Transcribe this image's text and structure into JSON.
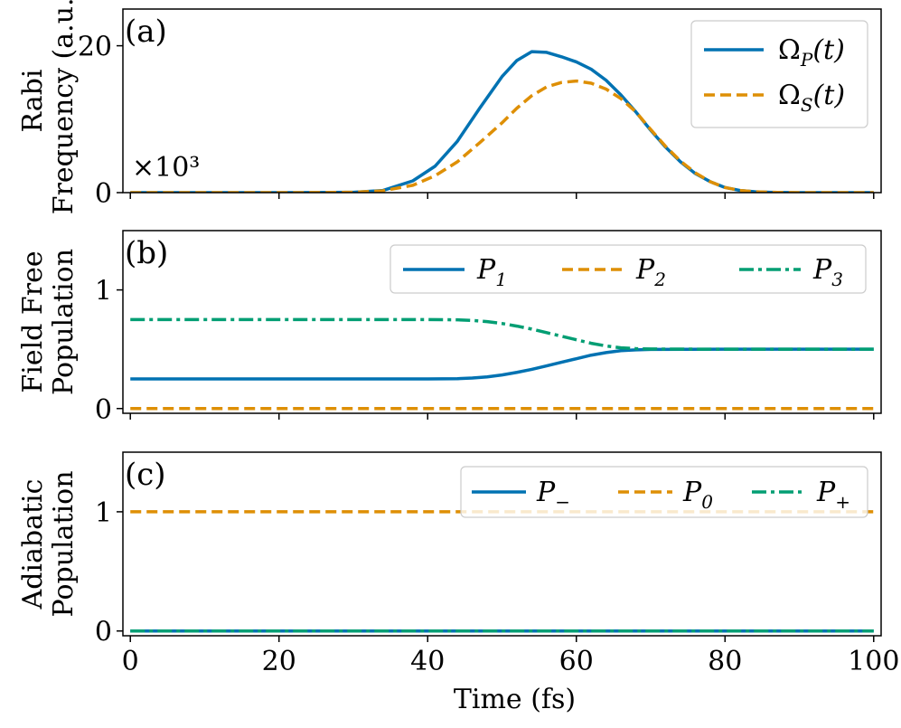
{
  "chart_data": [
    {
      "type": "line",
      "panel_label": "(a)",
      "ylabel": [
        "Rabi",
        "Frequency (a.u.)"
      ],
      "xlabel": "",
      "multiplier": "×10³",
      "xlim": [
        -1,
        101
      ],
      "ylim": [
        0,
        25
      ],
      "yticks": [
        {
          "value": 0,
          "label": "0"
        },
        {
          "value": 20,
          "label": "20"
        }
      ],
      "xticks": [
        0,
        20,
        40,
        60,
        80,
        100
      ],
      "show_xticklabels": false,
      "legend_position": "top-right",
      "legend_layout": "column",
      "series": [
        {
          "name": "Ω_P(t)",
          "legend_main": "Ω",
          "legend_sub": "P",
          "legend_tail": "(t)",
          "color": "#0072b2",
          "style": "solid",
          "x": [
            0,
            10,
            20,
            25,
            30,
            34,
            38,
            41,
            44,
            47,
            50,
            52,
            54,
            56,
            58,
            60,
            62,
            64,
            66,
            68,
            70,
            72,
            74,
            76,
            78,
            80,
            82,
            84,
            86,
            88,
            90,
            95,
            100
          ],
          "y": [
            0,
            0,
            0,
            0.01,
            0.05,
            0.3,
            1.6,
            3.6,
            7.0,
            11.5,
            15.8,
            18.0,
            19.2,
            19.1,
            18.5,
            17.8,
            16.8,
            15.3,
            13.3,
            11.0,
            8.5,
            6.2,
            4.2,
            2.6,
            1.5,
            0.7,
            0.3,
            0.12,
            0.05,
            0.02,
            0,
            0,
            0
          ]
        },
        {
          "name": "Ω_S(t)",
          "legend_main": "Ω",
          "legend_sub": "S",
          "legend_tail": "(t)",
          "color": "#de8f05",
          "style": "dashed",
          "x": [
            0,
            10,
            20,
            25,
            30,
            34,
            38,
            41,
            44,
            47,
            50,
            52,
            54,
            56,
            58,
            60,
            62,
            64,
            66,
            68,
            70,
            72,
            74,
            76,
            78,
            80,
            82,
            84,
            86,
            88,
            90,
            95,
            100
          ],
          "y": [
            0,
            0,
            0,
            0.01,
            0.05,
            0.25,
            1.0,
            2.3,
            4.2,
            6.8,
            9.5,
            11.5,
            13.2,
            14.4,
            15.0,
            15.2,
            14.9,
            14.1,
            12.8,
            11.0,
            8.6,
            6.3,
            4.3,
            2.7,
            1.5,
            0.7,
            0.3,
            0.12,
            0.05,
            0.02,
            0,
            0,
            0
          ]
        }
      ]
    },
    {
      "type": "line",
      "panel_label": "(b)",
      "ylabel": [
        "Field Free",
        "Population"
      ],
      "xlabel": "",
      "xlim": [
        -1,
        101
      ],
      "ylim": [
        -0.04,
        1.5
      ],
      "yticks": [
        {
          "value": 0,
          "label": "0"
        },
        {
          "value": 1,
          "label": "1"
        }
      ],
      "xticks": [
        0,
        20,
        40,
        60,
        80,
        100
      ],
      "show_xticklabels": false,
      "legend_position": "top-right",
      "legend_layout": "row",
      "series": [
        {
          "name": "P_1",
          "legend_main": "P",
          "legend_sub": "1",
          "legend_tail": "",
          "color": "#0072b2",
          "style": "solid",
          "x": [
            0,
            20,
            40,
            44,
            46,
            48,
            50,
            52,
            54,
            56,
            58,
            60,
            62,
            64,
            66,
            68,
            70,
            80,
            90,
            100
          ],
          "y": [
            0.25,
            0.25,
            0.25,
            0.252,
            0.257,
            0.267,
            0.283,
            0.305,
            0.33,
            0.36,
            0.39,
            0.42,
            0.45,
            0.472,
            0.488,
            0.495,
            0.498,
            0.5,
            0.5,
            0.5
          ]
        },
        {
          "name": "P_2",
          "legend_main": "P",
          "legend_sub": "2",
          "legend_tail": "",
          "color": "#de8f05",
          "style": "dashed",
          "x": [
            0,
            100
          ],
          "y": [
            0,
            0
          ]
        },
        {
          "name": "P_3",
          "legend_main": "P",
          "legend_sub": "3",
          "legend_tail": "",
          "color": "#029e73",
          "style": "dashdot",
          "x": [
            0,
            20,
            40,
            44,
            46,
            48,
            50,
            52,
            54,
            56,
            58,
            60,
            62,
            64,
            66,
            68,
            70,
            80,
            90,
            100
          ],
          "y": [
            0.75,
            0.75,
            0.75,
            0.748,
            0.743,
            0.733,
            0.717,
            0.695,
            0.67,
            0.64,
            0.61,
            0.58,
            0.55,
            0.528,
            0.512,
            0.505,
            0.502,
            0.5,
            0.5,
            0.5
          ]
        }
      ]
    },
    {
      "type": "line",
      "panel_label": "(c)",
      "ylabel": [
        "Adiabatic",
        "Population"
      ],
      "xlabel": "Time (fs)",
      "xlim": [
        -1,
        101
      ],
      "ylim": [
        -0.04,
        1.5
      ],
      "yticks": [
        {
          "value": 0,
          "label": "0"
        },
        {
          "value": 1,
          "label": "1"
        }
      ],
      "xticks": [
        0,
        20,
        40,
        60,
        80,
        100
      ],
      "xticklabels": [
        "0",
        "20",
        "40",
        "60",
        "80",
        "100"
      ],
      "show_xticklabels": true,
      "legend_position": "top-right",
      "legend_layout": "row",
      "series": [
        {
          "name": "P_-",
          "legend_main": "P",
          "legend_sub": "−",
          "legend_tail": "",
          "color": "#0072b2",
          "style": "solid",
          "x": [
            0,
            100
          ],
          "y": [
            0,
            0
          ]
        },
        {
          "name": "P_0",
          "legend_main": "P",
          "legend_sub": "0",
          "legend_tail": "",
          "color": "#de8f05",
          "style": "dashed",
          "x": [
            0,
            100
          ],
          "y": [
            1,
            1
          ]
        },
        {
          "name": "P_+",
          "legend_main": "P",
          "legend_sub": "+",
          "legend_tail": "",
          "color": "#029e73",
          "style": "dashdot",
          "x": [
            0,
            100
          ],
          "y": [
            0,
            0
          ]
        }
      ]
    }
  ]
}
